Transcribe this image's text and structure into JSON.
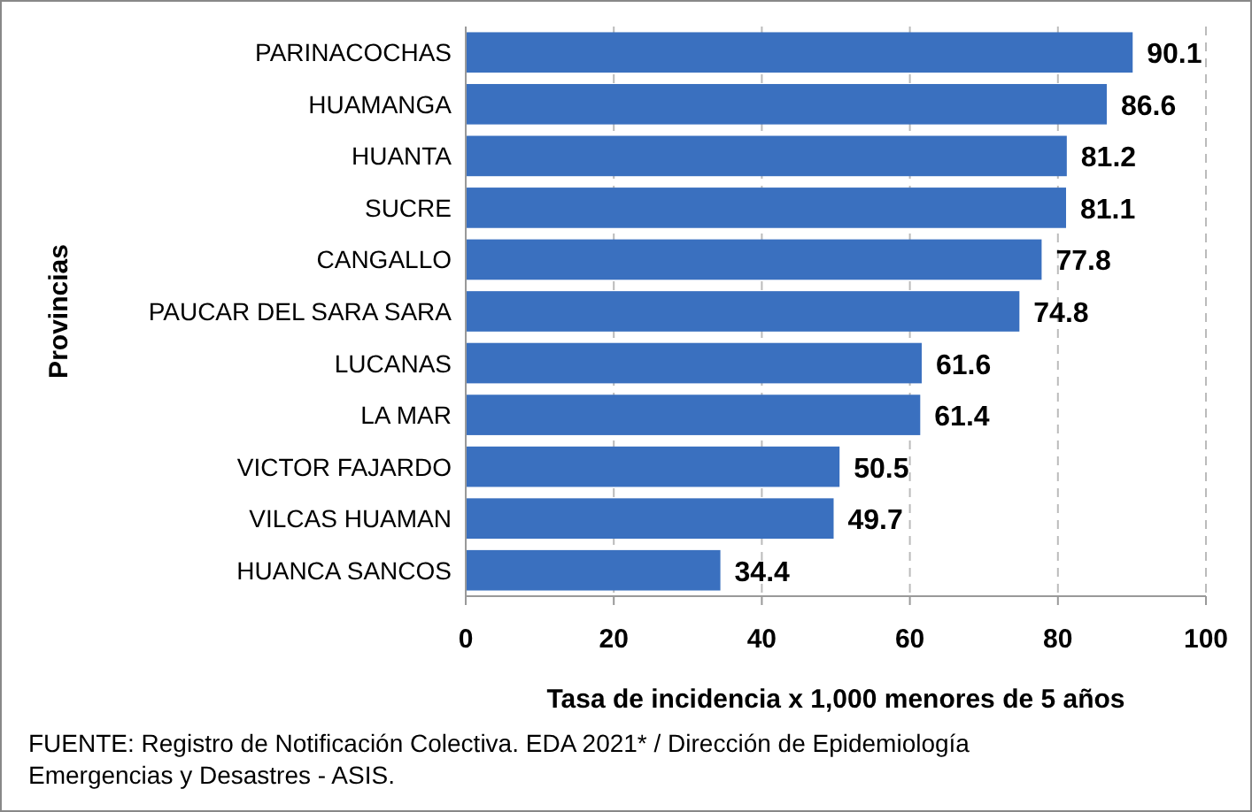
{
  "chart_data": {
    "type": "bar",
    "orientation": "horizontal",
    "xlabel": "Tasa de incidencia  x 1,000 menores de 5 años",
    "ylabel": "Provincias",
    "categories": [
      "PARINACOCHAS",
      "HUAMANGA",
      "HUANTA",
      "SUCRE",
      "CANGALLO",
      "PAUCAR DEL SARA SARA",
      "LUCANAS",
      "LA MAR",
      "VICTOR FAJARDO",
      "VILCAS HUAMAN",
      "HUANCA SANCOS"
    ],
    "values": [
      90.1,
      86.6,
      81.2,
      81.1,
      77.8,
      74.8,
      61.6,
      61.4,
      50.5,
      49.7,
      34.4
    ],
    "color": "#3a70bf",
    "xlim": [
      0,
      100
    ],
    "xticks": [
      0,
      20,
      40,
      60,
      80,
      100
    ],
    "grid": "x",
    "data_labels": true,
    "annotations": [
      "FUENTE:   Registro de Notificación Colectiva. EDA  2021* / Dirección de Epidemiología",
      "Emergencias y Desastres - ASIS."
    ]
  }
}
